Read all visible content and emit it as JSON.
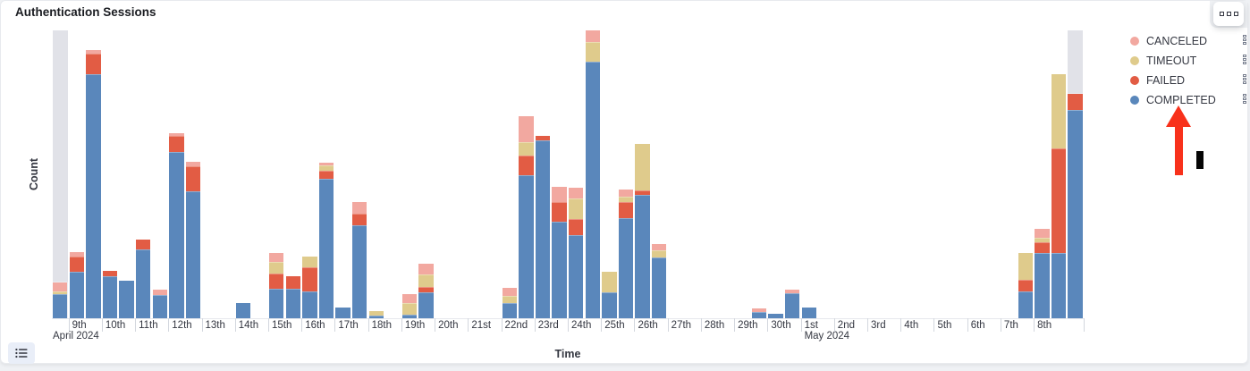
{
  "panel": {
    "title": "Authentication Sessions"
  },
  "legend": {
    "items": [
      {
        "label": "CANCELED",
        "color": "#F2A8A0"
      },
      {
        "label": "TIMEOUT",
        "color": "#DFCB8C"
      },
      {
        "label": "FAILED",
        "color": "#E25C44"
      },
      {
        "label": "COMPLETED",
        "color": "#5A87BB"
      }
    ]
  },
  "chart_data": {
    "type": "bar",
    "stacked": true,
    "title": "Authentication Sessions",
    "xlabel": "Time",
    "ylabel": "Count",
    "y_ticks": [],
    "ylim": [
      0,
      322
    ],
    "x_unit": "12-hour buckets",
    "x_range": "April 8 2024 12:00 to May 9 2024 12:00",
    "slots": 62,
    "legend_position": "right",
    "grid": false,
    "segment_order": [
      "completed",
      "failed",
      "timeout",
      "canceled"
    ],
    "series_colors": {
      "completed": "#5A87BB",
      "failed": "#E25C44",
      "timeout": "#DFCB8C",
      "canceled": "#F2A8A0"
    },
    "partial_bucket_color": "#E1E2E8",
    "partial_bucket_slots": [
      0,
      61
    ],
    "day_ticks": [
      {
        "label": "9th",
        "month_label": "April 2024"
      },
      {
        "label": "10th"
      },
      {
        "label": "11th"
      },
      {
        "label": "12th"
      },
      {
        "label": "13th"
      },
      {
        "label": "14th"
      },
      {
        "label": "15th"
      },
      {
        "label": "16th"
      },
      {
        "label": "17th"
      },
      {
        "label": "18th"
      },
      {
        "label": "19th"
      },
      {
        "label": "20th"
      },
      {
        "label": "21st"
      },
      {
        "label": "22nd"
      },
      {
        "label": "23rd"
      },
      {
        "label": "24th"
      },
      {
        "label": "25th"
      },
      {
        "label": "26th"
      },
      {
        "label": "27th"
      },
      {
        "label": "28th"
      },
      {
        "label": "29th"
      },
      {
        "label": "30th"
      },
      {
        "label": "1st",
        "month_label": "May 2024"
      },
      {
        "label": "2nd"
      },
      {
        "label": "3rd"
      },
      {
        "label": "4th"
      },
      {
        "label": "5th"
      },
      {
        "label": "6th"
      },
      {
        "label": "7th"
      },
      {
        "label": "8th"
      }
    ],
    "bars": [
      {
        "slot": 0,
        "completed": 27,
        "failed": 0,
        "timeout": 3,
        "canceled": 10
      },
      {
        "slot": 1,
        "completed": 52,
        "failed": 17,
        "timeout": 0,
        "canceled": 5
      },
      {
        "slot": 2,
        "completed": 273,
        "failed": 23,
        "timeout": 0,
        "canceled": 4
      },
      {
        "slot": 3,
        "completed": 47,
        "failed": 6,
        "timeout": 0,
        "canceled": 0
      },
      {
        "slot": 4,
        "completed": 42,
        "failed": 0,
        "timeout": 0,
        "canceled": 0
      },
      {
        "slot": 5,
        "completed": 77,
        "failed": 11,
        "timeout": 0,
        "canceled": 0
      },
      {
        "slot": 6,
        "completed": 26,
        "failed": 0,
        "timeout": 0,
        "canceled": 6
      },
      {
        "slot": 7,
        "completed": 186,
        "failed": 18,
        "timeout": 0,
        "canceled": 3
      },
      {
        "slot": 8,
        "completed": 142,
        "failed": 28,
        "timeout": 0,
        "canceled": 5
      },
      {
        "slot": 11,
        "completed": 17,
        "failed": 0,
        "timeout": 0,
        "canceled": 0
      },
      {
        "slot": 13,
        "completed": 33,
        "failed": 17,
        "timeout": 13,
        "canceled": 10
      },
      {
        "slot": 14,
        "completed": 33,
        "failed": 14,
        "timeout": 0,
        "canceled": 0
      },
      {
        "slot": 15,
        "completed": 30,
        "failed": 27,
        "timeout": 12,
        "canceled": 0
      },
      {
        "slot": 16,
        "completed": 156,
        "failed": 9,
        "timeout": 6,
        "canceled": 3
      },
      {
        "slot": 17,
        "completed": 12,
        "failed": 0,
        "timeout": 0,
        "canceled": 0
      },
      {
        "slot": 18,
        "completed": 104,
        "failed": 13,
        "timeout": 0,
        "canceled": 13
      },
      {
        "slot": 19,
        "completed": 3,
        "failed": 0,
        "timeout": 5,
        "canceled": 0
      },
      {
        "slot": 21,
        "completed": 4,
        "failed": 0,
        "timeout": 13,
        "canceled": 10
      },
      {
        "slot": 22,
        "completed": 29,
        "failed": 6,
        "timeout": 14,
        "canceled": 12
      },
      {
        "slot": 27,
        "completed": 17,
        "failed": 0,
        "timeout": 8,
        "canceled": 9
      },
      {
        "slot": 28,
        "completed": 160,
        "failed": 22,
        "timeout": 15,
        "canceled": 29
      },
      {
        "slot": 29,
        "completed": 199,
        "failed": 5,
        "timeout": 0,
        "canceled": 0
      },
      {
        "slot": 30,
        "completed": 108,
        "failed": 22,
        "timeout": 0,
        "canceled": 17
      },
      {
        "slot": 31,
        "completed": 93,
        "failed": 18,
        "timeout": 23,
        "canceled": 12
      },
      {
        "slot": 32,
        "completed": 287,
        "failed": 0,
        "timeout": 22,
        "canceled": 13
      },
      {
        "slot": 33,
        "completed": 29,
        "failed": 0,
        "timeout": 23,
        "canceled": 0
      },
      {
        "slot": 34,
        "completed": 112,
        "failed": 18,
        "timeout": 6,
        "canceled": 8
      },
      {
        "slot": 35,
        "completed": 138,
        "failed": 5,
        "timeout": 52,
        "canceled": 0
      },
      {
        "slot": 36,
        "completed": 68,
        "failed": 0,
        "timeout": 8,
        "canceled": 7
      },
      {
        "slot": 42,
        "completed": 7,
        "failed": 0,
        "timeout": 0,
        "canceled": 4
      },
      {
        "slot": 43,
        "completed": 5,
        "failed": 0,
        "timeout": 0,
        "canceled": 0
      },
      {
        "slot": 44,
        "completed": 28,
        "failed": 0,
        "timeout": 0,
        "canceled": 4
      },
      {
        "slot": 45,
        "completed": 12,
        "failed": 0,
        "timeout": 0,
        "canceled": 0
      },
      {
        "slot": 58,
        "completed": 30,
        "failed": 13,
        "timeout": 30,
        "canceled": 0
      },
      {
        "slot": 59,
        "completed": 73,
        "failed": 12,
        "timeout": 5,
        "canceled": 10
      },
      {
        "slot": 60,
        "completed": 73,
        "failed": 117,
        "timeout": 83,
        "canceled": 0
      },
      {
        "slot": 61,
        "completed": 233,
        "failed": 18,
        "timeout": 0,
        "canceled": 0
      }
    ],
    "note": "Y axis has no tick labels; values are relative estimated counts"
  },
  "annotations": {
    "arrow": {
      "color": "#F8311B",
      "direction": "up",
      "points_at": "COMPLETED legend item"
    },
    "caret": {
      "color": "#050505"
    }
  }
}
